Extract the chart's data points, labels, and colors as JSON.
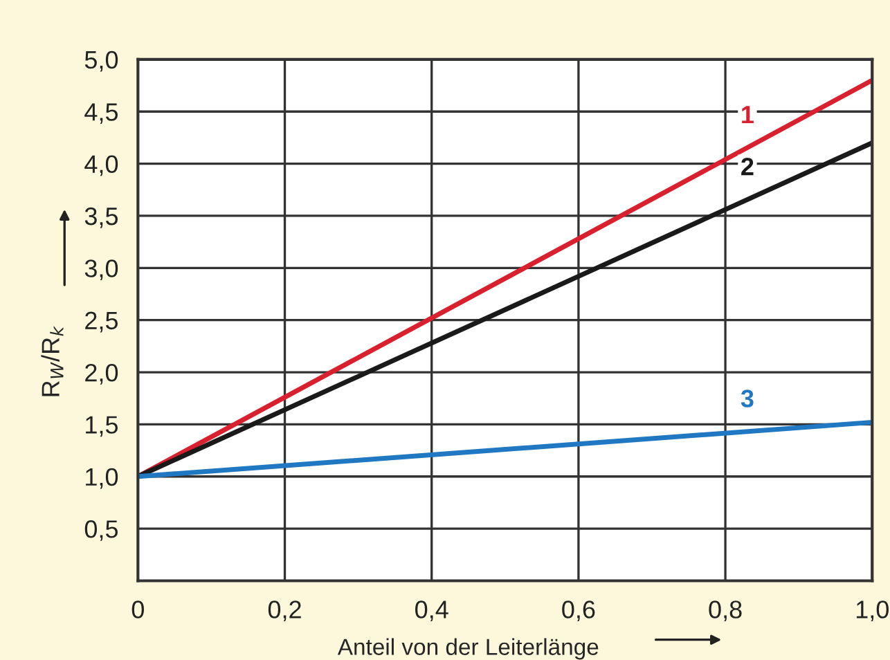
{
  "chart_data": {
    "type": "line",
    "xlabel": "Anteil von der Leiterlänge",
    "ylabel": "R$_{W}$/R$_{k}$",
    "x": [
      0,
      1
    ],
    "series": [
      {
        "name": "1",
        "color": "#d9202e",
        "values": [
          1.0,
          4.8
        ]
      },
      {
        "name": "2",
        "color": "#1a1a1a",
        "values": [
          1.0,
          4.2
        ]
      },
      {
        "name": "3",
        "color": "#1f78c1",
        "values": [
          1.0,
          1.52
        ]
      }
    ],
    "xlim": [
      0,
      1
    ],
    "ylim": [
      0,
      5
    ],
    "xticks": [
      0,
      {
        "value": 0.2,
        "label": "0,2"
      },
      {
        "value": 0.4,
        "label": "0,4"
      },
      {
        "value": 0.6,
        "label": "0,6"
      },
      {
        "value": 0.8,
        "label": "0,8"
      },
      {
        "value": 1,
        "label": "1,0"
      }
    ],
    "yticks": [
      {
        "value": 0.5,
        "label": "0,5"
      },
      {
        "value": 1,
        "label": "1,0"
      },
      {
        "value": 1.5,
        "label": "1,5"
      },
      {
        "value": 2,
        "label": "2,0"
      },
      {
        "value": 2.5,
        "label": "2,5"
      },
      {
        "value": 3,
        "label": "3,0"
      },
      {
        "value": 3.5,
        "label": "3,5"
      },
      {
        "value": 4,
        "label": "4,0"
      },
      {
        "value": 4.5,
        "label": "4,5"
      },
      {
        "value": 5,
        "label": "5,0"
      }
    ],
    "grid": true,
    "legend": false,
    "marker": "none",
    "line_style": "solid"
  }
}
